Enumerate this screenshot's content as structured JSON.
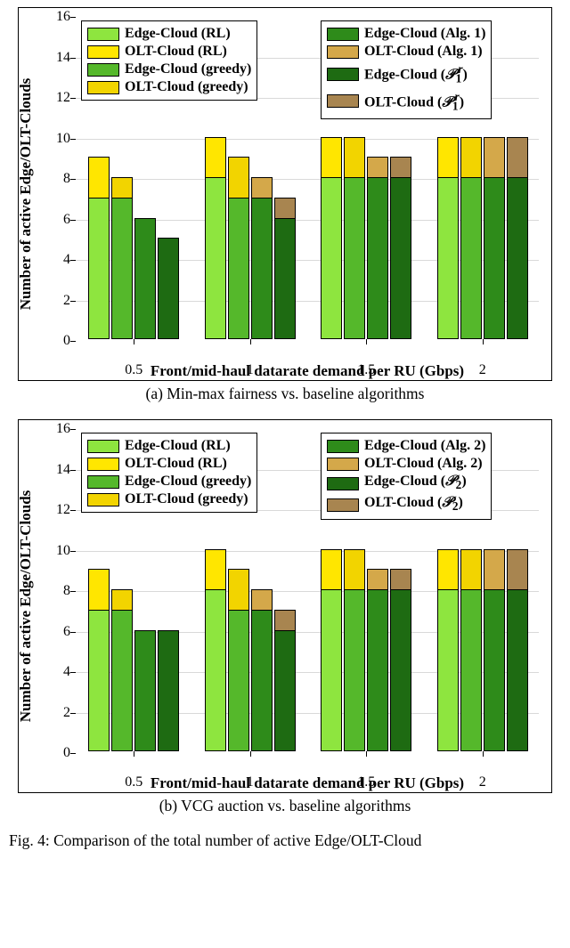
{
  "figure_caption_prefix": "Fig. 4: Comparison of the total number of active Edge/OLT-Cloud",
  "panels": [
    {
      "caption": "(a) Min-max fairness vs. baseline algorithms",
      "ylabel": "Number of active Edge/OLT-Clouds",
      "xlabel": "Front/mid-haul datarate demand per RU (Gbps)",
      "ylim": [
        0,
        16
      ],
      "ytick_step": 2,
      "x_categories": [
        "0.5",
        "1",
        "1.5",
        "2"
      ],
      "bar_colors": {
        "edge_rl": "#8ee53f",
        "olt_rl": "#ffe600",
        "edge_grd": "#55b82b",
        "olt_grd": "#f2d400",
        "edge_alg": "#2e8b1a",
        "olt_alg": "#d4a84a",
        "edge_p": "#1e6b12",
        "olt_p": "#a88550"
      },
      "legend_left": {
        "rows": [
          {
            "swatch": "edge_rl",
            "label": "Edge-Cloud (RL)"
          },
          {
            "swatch": "olt_rl",
            "label": "OLT-Cloud (RL)"
          },
          {
            "swatch": "edge_grd",
            "label": "Edge-Cloud (greedy)"
          },
          {
            "swatch": "olt_grd",
            "label": "OLT-Cloud (greedy)"
          }
        ]
      },
      "legend_right": {
        "rows": [
          {
            "swatch": "edge_alg",
            "label": "Edge-Cloud (Alg. 1)"
          },
          {
            "swatch": "olt_alg",
            "label": "OLT-Cloud (Alg. 1)"
          },
          {
            "swatch": "edge_p",
            "label_html": "Edge-Cloud (<span class='sup'>&#119979;</span><sub>1</sub><sup style='margin-left:-4px'><i>r</i></sup>)"
          },
          {
            "swatch": "olt_p",
            "label_html": "OLT-Cloud (<span class='sup'>&#119979;</span><sub>1</sub><sup style='margin-left:-4px'><i>r</i></sup>)"
          }
        ]
      },
      "groups": [
        {
          "bars": [
            {
              "edge": 7,
              "olt": 9,
              "edge_c": "edge_rl",
              "olt_c": "olt_rl"
            },
            {
              "edge": 7,
              "olt": 8,
              "edge_c": "edge_grd",
              "olt_c": "olt_grd"
            },
            {
              "edge": 6,
              "olt": 6,
              "edge_c": "edge_alg",
              "olt_c": "olt_alg"
            },
            {
              "edge": 5,
              "olt": 5,
              "edge_c": "edge_p",
              "olt_c": "olt_p"
            }
          ]
        },
        {
          "bars": [
            {
              "edge": 8,
              "olt": 10,
              "edge_c": "edge_rl",
              "olt_c": "olt_rl"
            },
            {
              "edge": 7,
              "olt": 9,
              "edge_c": "edge_grd",
              "olt_c": "olt_grd"
            },
            {
              "edge": 7,
              "olt": 8,
              "edge_c": "edge_alg",
              "olt_c": "olt_alg"
            },
            {
              "edge": 6,
              "olt": 7,
              "edge_c": "edge_p",
              "olt_c": "olt_p"
            }
          ]
        },
        {
          "bars": [
            {
              "edge": 8,
              "olt": 10,
              "edge_c": "edge_rl",
              "olt_c": "olt_rl"
            },
            {
              "edge": 8,
              "olt": 10,
              "edge_c": "edge_grd",
              "olt_c": "olt_grd"
            },
            {
              "edge": 8,
              "olt": 9,
              "edge_c": "edge_alg",
              "olt_c": "olt_alg"
            },
            {
              "edge": 8,
              "olt": 9,
              "edge_c": "edge_p",
              "olt_c": "olt_p"
            }
          ]
        },
        {
          "bars": [
            {
              "edge": 8,
              "olt": 10,
              "edge_c": "edge_rl",
              "olt_c": "olt_rl"
            },
            {
              "edge": 8,
              "olt": 10,
              "edge_c": "edge_grd",
              "olt_c": "olt_grd"
            },
            {
              "edge": 8,
              "olt": 10,
              "edge_c": "edge_alg",
              "olt_c": "olt_alg"
            },
            {
              "edge": 8,
              "olt": 10,
              "edge_c": "edge_p",
              "olt_c": "olt_p"
            }
          ]
        }
      ]
    },
    {
      "caption": "(b) VCG auction vs. baseline algorithms",
      "ylabel": "Number of active Edge/OLT-Clouds",
      "xlabel": "Front/mid-haul datarate demand per RU (Gbps)",
      "ylim": [
        0,
        16
      ],
      "ytick_step": 2,
      "x_categories": [
        "0.5",
        "1",
        "1.5",
        "2"
      ],
      "bar_colors": {
        "edge_rl": "#8ee53f",
        "olt_rl": "#ffe600",
        "edge_grd": "#55b82b",
        "olt_grd": "#f2d400",
        "edge_alg": "#2e8b1a",
        "olt_alg": "#d4a84a",
        "edge_p": "#1e6b12",
        "olt_p": "#a88550"
      },
      "legend_left": {
        "rows": [
          {
            "swatch": "edge_rl",
            "label": "Edge-Cloud (RL)"
          },
          {
            "swatch": "olt_rl",
            "label": "OLT-Cloud (RL)"
          },
          {
            "swatch": "edge_grd",
            "label": "Edge-Cloud (greedy)"
          },
          {
            "swatch": "olt_grd",
            "label": "OLT-Cloud (greedy)"
          }
        ]
      },
      "legend_right": {
        "rows": [
          {
            "swatch": "edge_alg",
            "label": "Edge-Cloud (Alg. 2)"
          },
          {
            "swatch": "olt_alg",
            "label": "OLT-Cloud (Alg. 2)"
          },
          {
            "swatch": "edge_p",
            "label_html": "Edge-Cloud (<span class='sup'>&#119979;</span><sub>2</sub>)"
          },
          {
            "swatch": "olt_p",
            "label_html": "OLT-Cloud (<span class='sup'>&#119979;</span><sub>2</sub>)"
          }
        ]
      },
      "groups": [
        {
          "bars": [
            {
              "edge": 7,
              "olt": 9,
              "edge_c": "edge_rl",
              "olt_c": "olt_rl"
            },
            {
              "edge": 7,
              "olt": 8,
              "edge_c": "edge_grd",
              "olt_c": "olt_grd"
            },
            {
              "edge": 6,
              "olt": 6,
              "edge_c": "edge_alg",
              "olt_c": "olt_alg"
            },
            {
              "edge": 6,
              "olt": 6,
              "edge_c": "edge_p",
              "olt_c": "olt_p"
            }
          ]
        },
        {
          "bars": [
            {
              "edge": 8,
              "olt": 10,
              "edge_c": "edge_rl",
              "olt_c": "olt_rl"
            },
            {
              "edge": 7,
              "olt": 9,
              "edge_c": "edge_grd",
              "olt_c": "olt_grd"
            },
            {
              "edge": 7,
              "olt": 8,
              "edge_c": "edge_alg",
              "olt_c": "olt_alg"
            },
            {
              "edge": 6,
              "olt": 7,
              "edge_c": "edge_p",
              "olt_c": "olt_p"
            }
          ]
        },
        {
          "bars": [
            {
              "edge": 8,
              "olt": 10,
              "edge_c": "edge_rl",
              "olt_c": "olt_rl"
            },
            {
              "edge": 8,
              "olt": 10,
              "edge_c": "edge_grd",
              "olt_c": "olt_grd"
            },
            {
              "edge": 8,
              "olt": 9,
              "edge_c": "edge_alg",
              "olt_c": "olt_alg"
            },
            {
              "edge": 8,
              "olt": 9,
              "edge_c": "edge_p",
              "olt_c": "olt_p"
            }
          ]
        },
        {
          "bars": [
            {
              "edge": 8,
              "olt": 10,
              "edge_c": "edge_rl",
              "olt_c": "olt_rl"
            },
            {
              "edge": 8,
              "olt": 10,
              "edge_c": "edge_grd",
              "olt_c": "olt_grd"
            },
            {
              "edge": 8,
              "olt": 10,
              "edge_c": "edge_alg",
              "olt_c": "olt_alg"
            },
            {
              "edge": 8,
              "olt": 10,
              "edge_c": "edge_p",
              "olt_c": "olt_p"
            }
          ]
        }
      ]
    }
  ]
}
